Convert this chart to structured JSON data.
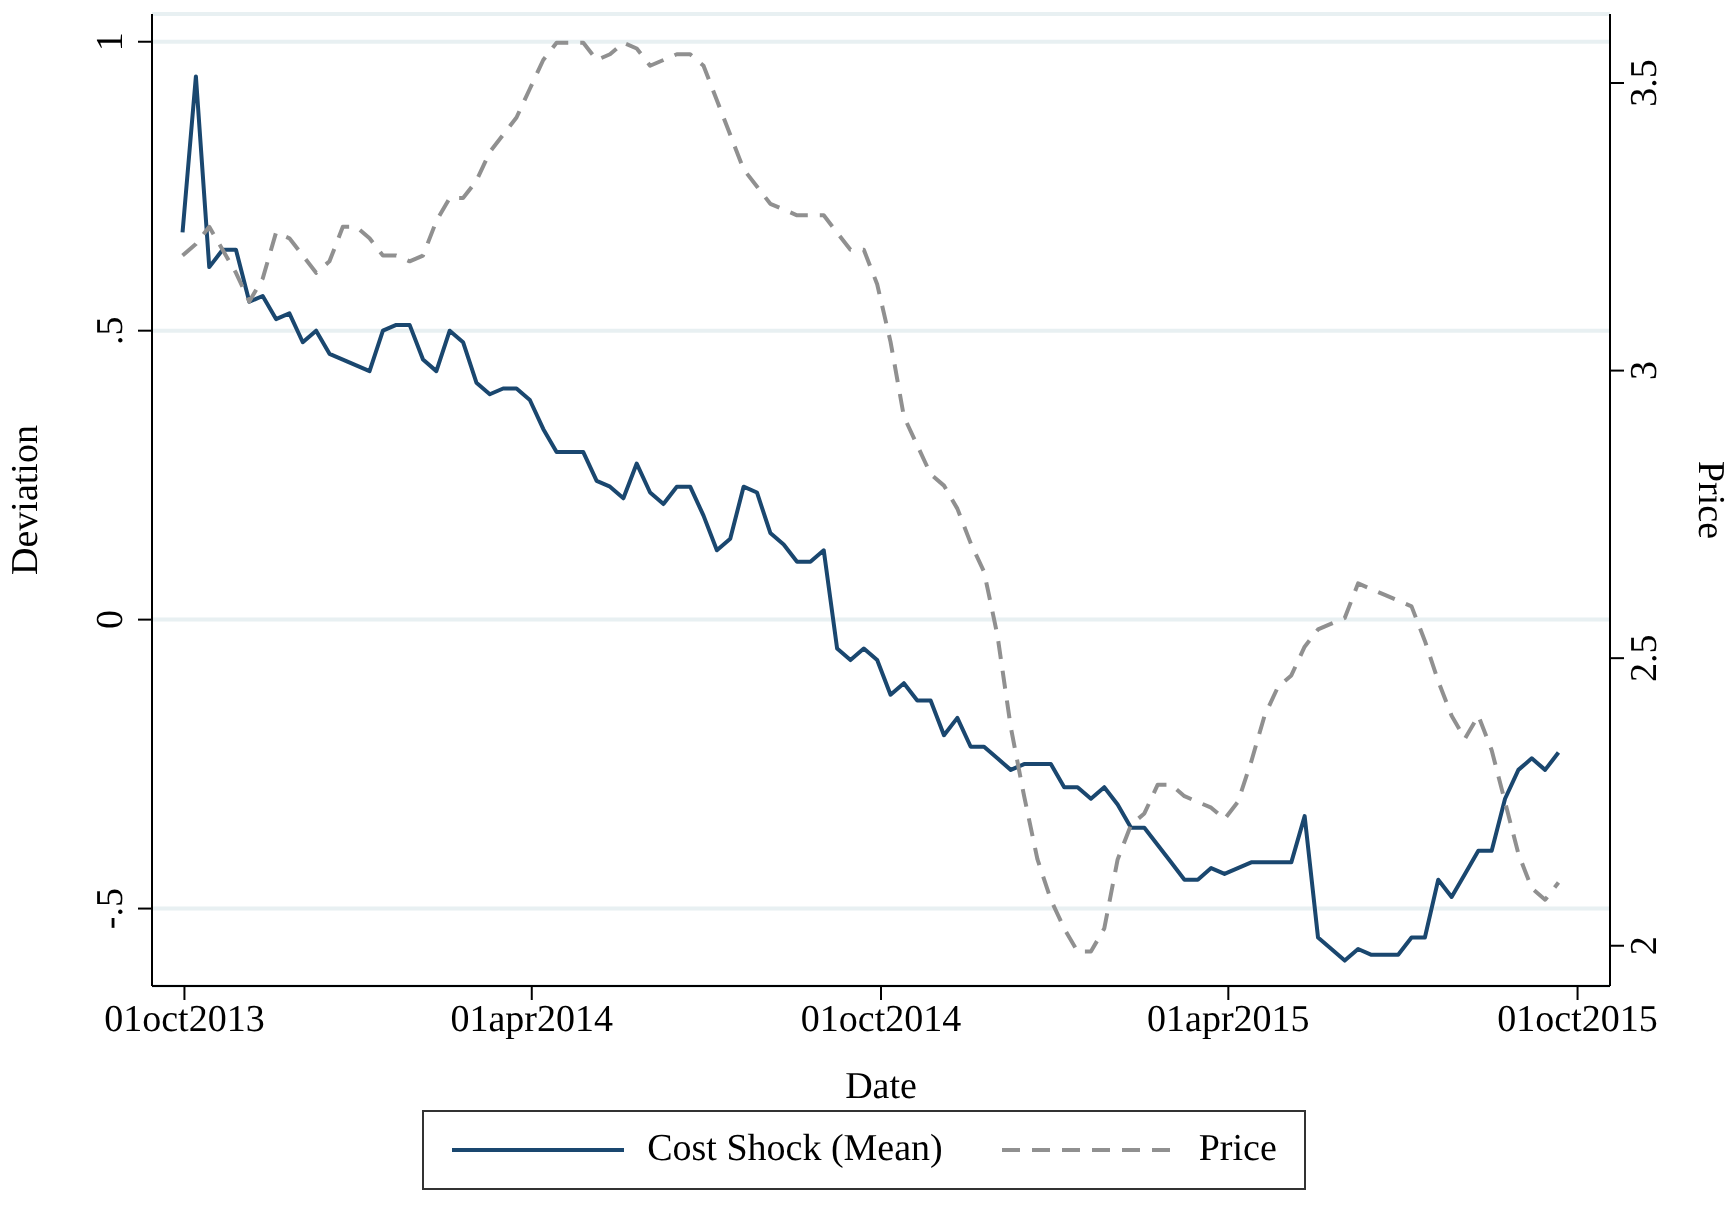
{
  "chart_data": {
    "type": "line",
    "xlabel": "Date",
    "ylabel": "Deviation",
    "y2label": "Price",
    "x": [
      "2013-09-30",
      "2013-10-07",
      "2013-10-14",
      "2013-10-21",
      "2013-10-28",
      "2013-11-04",
      "2013-11-11",
      "2013-11-18",
      "2013-11-25",
      "2013-12-02",
      "2013-12-09",
      "2013-12-16",
      "2013-12-23",
      "2013-12-30",
      "2014-01-06",
      "2014-01-13",
      "2014-01-20",
      "2014-01-27",
      "2014-02-03",
      "2014-02-10",
      "2014-02-17",
      "2014-02-24",
      "2014-03-03",
      "2014-03-10",
      "2014-03-17",
      "2014-03-24",
      "2014-03-31",
      "2014-04-07",
      "2014-04-14",
      "2014-04-21",
      "2014-04-28",
      "2014-05-05",
      "2014-05-12",
      "2014-05-19",
      "2014-05-26",
      "2014-06-02",
      "2014-06-09",
      "2014-06-16",
      "2014-06-23",
      "2014-06-30",
      "2014-07-07",
      "2014-07-14",
      "2014-07-21",
      "2014-07-28",
      "2014-08-04",
      "2014-08-11",
      "2014-08-18",
      "2014-08-25",
      "2014-09-01",
      "2014-09-08",
      "2014-09-15",
      "2014-09-22",
      "2014-09-29",
      "2014-10-06",
      "2014-10-13",
      "2014-10-20",
      "2014-10-27",
      "2014-11-03",
      "2014-11-10",
      "2014-11-17",
      "2014-11-24",
      "2014-12-01",
      "2014-12-08",
      "2014-12-15",
      "2014-12-22",
      "2014-12-29",
      "2015-01-05",
      "2015-01-12",
      "2015-01-19",
      "2015-01-26",
      "2015-02-02",
      "2015-02-09",
      "2015-02-16",
      "2015-02-23",
      "2015-03-02",
      "2015-03-09",
      "2015-03-16",
      "2015-03-23",
      "2015-03-30",
      "2015-04-06",
      "2015-04-13",
      "2015-04-20",
      "2015-04-27",
      "2015-05-04",
      "2015-05-11",
      "2015-05-18",
      "2015-05-25",
      "2015-06-01",
      "2015-06-08",
      "2015-06-15",
      "2015-06-22",
      "2015-06-29",
      "2015-07-06",
      "2015-07-13",
      "2015-07-20",
      "2015-07-27",
      "2015-08-03",
      "2015-08-10",
      "2015-08-17",
      "2015-08-24",
      "2015-08-31",
      "2015-09-07",
      "2015-09-14",
      "2015-09-21"
    ],
    "series": [
      {
        "name": "Cost Shock (Mean)",
        "color": "#1a476f",
        "line_style": "solid",
        "values": [
          0.67,
          0.94,
          0.61,
          0.64,
          0.64,
          0.55,
          0.56,
          0.52,
          0.53,
          0.48,
          0.5,
          0.46,
          0.45,
          0.44,
          0.43,
          0.5,
          0.51,
          0.51,
          0.45,
          0.43,
          0.5,
          0.48,
          0.41,
          0.39,
          0.4,
          0.4,
          0.38,
          0.33,
          0.29,
          0.29,
          0.29,
          0.24,
          0.23,
          0.21,
          0.27,
          0.22,
          0.2,
          0.23,
          0.23,
          0.18,
          0.12,
          0.14,
          0.23,
          0.22,
          0.15,
          0.13,
          0.1,
          0.1,
          0.12,
          -0.05,
          -0.07,
          -0.05,
          -0.07,
          -0.13,
          -0.11,
          -0.14,
          -0.14,
          -0.2,
          -0.17,
          -0.22,
          -0.22,
          -0.24,
          -0.26,
          -0.25,
          -0.25,
          -0.25,
          -0.29,
          -0.29,
          -0.31,
          -0.29,
          -0.32,
          -0.36,
          -0.36,
          -0.39,
          -0.42,
          -0.45,
          -0.45,
          -0.43,
          -0.44,
          -0.43,
          -0.42,
          -0.42,
          -0.42,
          -0.42,
          -0.34,
          -0.55,
          -0.57,
          -0.59,
          -0.57,
          -0.58,
          -0.58,
          -0.58,
          -0.55,
          -0.55,
          -0.45,
          -0.48,
          -0.44,
          -0.4,
          -0.4,
          -0.31,
          -0.26,
          -0.24,
          -0.26,
          -0.23
        ]
      },
      {
        "name": "Price",
        "color": "#909090",
        "line_style": "dashed",
        "axis": "y2",
        "values": [
          3.2,
          3.22,
          3.25,
          3.21,
          3.17,
          3.12,
          3.16,
          3.24,
          3.23,
          3.2,
          3.17,
          3.19,
          3.25,
          3.25,
          3.23,
          3.2,
          3.2,
          3.19,
          3.2,
          3.26,
          3.3,
          3.3,
          3.33,
          3.38,
          3.41,
          3.44,
          3.49,
          3.54,
          3.57,
          3.57,
          3.57,
          3.54,
          3.55,
          3.57,
          3.56,
          3.53,
          3.54,
          3.55,
          3.55,
          3.53,
          3.47,
          3.41,
          3.35,
          3.32,
          3.29,
          3.28,
          3.27,
          3.27,
          3.27,
          3.24,
          3.21,
          3.21,
          3.15,
          3.05,
          2.92,
          2.87,
          2.82,
          2.8,
          2.76,
          2.7,
          2.65,
          2.54,
          2.38,
          2.26,
          2.15,
          2.08,
          2.03,
          1.99,
          1.99,
          2.03,
          2.15,
          2.21,
          2.23,
          2.28,
          2.28,
          2.26,
          2.25,
          2.24,
          2.22,
          2.25,
          2.32,
          2.4,
          2.45,
          2.47,
          2.52,
          2.55,
          2.56,
          2.57,
          2.63,
          2.62,
          2.61,
          2.6,
          2.59,
          2.53,
          2.46,
          2.4,
          2.36,
          2.4,
          2.34,
          2.25,
          2.16,
          2.1,
          2.08,
          2.11
        ]
      }
    ],
    "xlim": [
      "2013-09-14",
      "2015-10-18"
    ],
    "xticks": [
      {
        "value": "2013-10-01",
        "label": "01oct2013"
      },
      {
        "value": "2014-04-01",
        "label": "01apr2014"
      },
      {
        "value": "2014-10-01",
        "label": "01oct2014"
      },
      {
        "value": "2015-04-01",
        "label": "01apr2015"
      },
      {
        "value": "2015-10-01",
        "label": "01oct2015"
      }
    ],
    "ylim": [
      -0.634,
      1.048
    ],
    "yticks": [
      {
        "value": -0.5,
        "label": "-.5"
      },
      0,
      {
        "value": 0.5,
        "label": ".5"
      },
      1
    ],
    "y2lim": [
      1.93,
      3.62
    ],
    "y2ticks": [
      2,
      2.5,
      3,
      3.5
    ],
    "grid": "y",
    "legend": "bottom"
  }
}
